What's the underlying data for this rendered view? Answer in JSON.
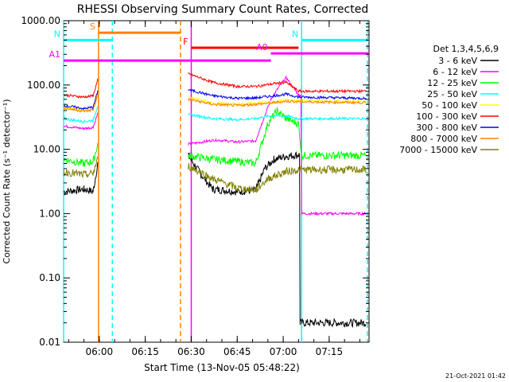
{
  "chart_data": {
    "type": "line",
    "title": "RHESSI Observing Summary Count Rates, Corrected",
    "xlabel": "Start Time (13-Nov-05 05:48:22)",
    "ylabel": "Corrected Count Rate (s⁻¹ detector⁻¹)",
    "yscale": "log",
    "ylim": [
      0.01,
      1000
    ],
    "xlim": [
      "05:48:22",
      "07:28:00"
    ],
    "y_ticks": [
      "0.01",
      "0.10",
      "1.00",
      "10.00",
      "100.00",
      "1000.00"
    ],
    "x_ticks": [
      "06:00",
      "06:15",
      "06:30",
      "06:45",
      "07:00",
      "07:15"
    ],
    "legend_title": "Det 1,3,4,5,6,9",
    "legend_position": "right",
    "series": [
      {
        "name": "3 - 6 keV",
        "color": "#000000",
        "points": [
          [
            "05:48:22",
            2.2
          ],
          [
            "05:55:00",
            2.4
          ],
          [
            "05:58:00",
            2.2
          ],
          [
            "05:59:30",
            6
          ],
          [
            "06:00:00",
            null
          ],
          [
            "06:29:00",
            8
          ],
          [
            "06:33:00",
            4.2
          ],
          [
            "06:37:00",
            2.4
          ],
          [
            "06:45:00",
            2.2
          ],
          [
            "06:51:00",
            2.3
          ],
          [
            "06:54:00",
            5
          ],
          [
            "06:57:00",
            7
          ],
          [
            "07:01:00",
            7.8
          ],
          [
            "07:05:00",
            8.2
          ],
          [
            "07:05:30",
            0.02
          ],
          [
            "07:27:00",
            0.02
          ]
        ]
      },
      {
        "name": "6 - 12 keV",
        "color": "#ff00ff",
        "points": [
          [
            "05:48:22",
            23
          ],
          [
            "05:55:00",
            21
          ],
          [
            "05:58:00",
            22
          ],
          [
            "05:59:30",
            36
          ],
          [
            "06:00:00",
            null
          ],
          [
            "06:29:00",
            12
          ],
          [
            "06:38:00",
            14
          ],
          [
            "06:45:00",
            13
          ],
          [
            "06:51:00",
            13.5
          ],
          [
            "06:53:00",
            25
          ],
          [
            "06:56:00",
            60
          ],
          [
            "06:59:00",
            100
          ],
          [
            "07:01:00",
            130
          ],
          [
            "07:05:00",
            70
          ],
          [
            "07:06:00",
            1.0
          ],
          [
            "07:27:00",
            1.0
          ]
        ]
      },
      {
        "name": "12 - 25 keV",
        "color": "#00ff00",
        "points": [
          [
            "05:48:22",
            7
          ],
          [
            "05:55:00",
            6
          ],
          [
            "05:58:00",
            6.5
          ],
          [
            "05:59:30",
            12
          ],
          [
            "06:00:00",
            null
          ],
          [
            "06:29:00",
            8
          ],
          [
            "06:37:00",
            7
          ],
          [
            "06:45:00",
            6.5
          ],
          [
            "06:51:00",
            6
          ],
          [
            "06:55:00",
            25
          ],
          [
            "06:58:00",
            40
          ],
          [
            "07:01:00",
            30
          ],
          [
            "07:05:00",
            25
          ],
          [
            "07:06:00",
            8
          ],
          [
            "07:27:00",
            8
          ]
        ]
      },
      {
        "name": "25 - 50 keV",
        "color": "#00ffff",
        "points": [
          [
            "05:48:22",
            30
          ],
          [
            "05:55:00",
            27
          ],
          [
            "05:58:00",
            28
          ],
          [
            "05:59:30",
            48
          ],
          [
            "06:00:00",
            null
          ],
          [
            "06:29:00",
            35
          ],
          [
            "06:37:00",
            30
          ],
          [
            "06:45:00",
            29
          ],
          [
            "06:51:00",
            30
          ],
          [
            "06:55:00",
            33
          ],
          [
            "07:01:00",
            33
          ],
          [
            "07:05:00",
            30
          ],
          [
            "07:27:00",
            30
          ]
        ]
      },
      {
        "name": "50 - 100 keV",
        "color": "#ffff00",
        "points": [
          [
            "05:48:22",
            45
          ],
          [
            "05:55:00",
            40
          ],
          [
            "05:58:00",
            42
          ],
          [
            "05:59:30",
            72
          ],
          [
            "06:00:00",
            null
          ],
          [
            "06:29:00",
            65
          ],
          [
            "06:37:00",
            52
          ],
          [
            "06:45:00",
            50
          ],
          [
            "06:51:00",
            52
          ],
          [
            "06:57:00",
            55
          ],
          [
            "07:01:00",
            58
          ],
          [
            "07:05:00",
            58
          ],
          [
            "07:27:00",
            55
          ]
        ]
      },
      {
        "name": "100 - 300 keV",
        "color": "#ff0000",
        "points": [
          [
            "05:48:22",
            70
          ],
          [
            "05:55:00",
            65
          ],
          [
            "05:58:00",
            68
          ],
          [
            "05:59:30",
            120
          ],
          [
            "06:00:00",
            null
          ],
          [
            "06:29:00",
            150
          ],
          [
            "06:37:00",
            110
          ],
          [
            "06:45:00",
            95
          ],
          [
            "06:51:00",
            95
          ],
          [
            "06:57:00",
            105
          ],
          [
            "07:01:00",
            110
          ],
          [
            "07:05:00",
            80
          ],
          [
            "07:27:00",
            80
          ]
        ]
      },
      {
        "name": "300 - 800 keV",
        "color": "#0000ff",
        "points": [
          [
            "05:48:22",
            48
          ],
          [
            "05:55:00",
            43
          ],
          [
            "05:58:00",
            45
          ],
          [
            "05:59:30",
            80
          ],
          [
            "06:00:00",
            null
          ],
          [
            "06:29:00",
            85
          ],
          [
            "06:37:00",
            68
          ],
          [
            "06:45:00",
            62
          ],
          [
            "06:51:00",
            63
          ],
          [
            "06:57:00",
            68
          ],
          [
            "07:01:00",
            72
          ],
          [
            "07:05:00",
            65
          ],
          [
            "07:27:00",
            62
          ]
        ]
      },
      {
        "name": "800 - 7000 keV",
        "color": "#ff8000",
        "points": [
          [
            "05:48:22",
            44
          ],
          [
            "05:55:00",
            39
          ],
          [
            "05:58:00",
            41
          ],
          [
            "05:59:30",
            70
          ],
          [
            "06:00:00",
            null
          ],
          [
            "06:29:00",
            60
          ],
          [
            "06:37:00",
            50
          ],
          [
            "06:45:00",
            48
          ],
          [
            "06:51:00",
            50
          ],
          [
            "06:57:00",
            53
          ],
          [
            "07:01:00",
            56
          ],
          [
            "07:05:00",
            55
          ],
          [
            "07:27:00",
            53
          ]
        ]
      },
      {
        "name": "7000 - 15000 keV",
        "color": "#808000",
        "points": [
          [
            "05:48:22",
            4.5
          ],
          [
            "05:55:00",
            4.0
          ],
          [
            "05:58:00",
            4.2
          ],
          [
            "05:59:30",
            7
          ],
          [
            "06:00:00",
            null
          ],
          [
            "06:29:00",
            5.5
          ],
          [
            "06:37:00",
            3.5
          ],
          [
            "06:45:00",
            2.5
          ],
          [
            "06:51:00",
            2.3
          ],
          [
            "06:55:00",
            3.5
          ],
          [
            "07:01:00",
            4.5
          ],
          [
            "07:05:00",
            4.8
          ],
          [
            "07:27:00",
            4.8
          ]
        ]
      }
    ],
    "flag_bars": [
      {
        "label": "S",
        "color": "#ff8000",
        "start": "05:59:45",
        "end": "06:26:30",
        "y": 650
      },
      {
        "label": "N",
        "color": "#00ffff",
        "start": "05:48:22",
        "end": "06:04:15",
        "y": 500
      },
      {
        "label": "N",
        "color": "#00ffff",
        "start": "07:06:00",
        "end": "07:28:00",
        "y": 500
      },
      {
        "label": "F",
        "color": "#ff0000",
        "start": "06:30:00",
        "end": "07:05:00",
        "y": 380
      },
      {
        "label": "A0",
        "color": "#ff00ff",
        "start": "06:56:00",
        "end": "07:28:00",
        "y": 310
      },
      {
        "label": "A1",
        "color": "#ff00ff",
        "start": "05:48:22",
        "end": "06:56:00",
        "y": 240
      }
    ],
    "vertical_markers": [
      {
        "time": "05:48:22",
        "color": "#00ffff",
        "style": "solid"
      },
      {
        "time": "05:59:45",
        "color": "#ff8000",
        "style": "solid"
      },
      {
        "time": "06:04:15",
        "color": "#00ffff",
        "style": "dashed"
      },
      {
        "time": "06:26:30",
        "color": "#ff8000",
        "style": "dashed"
      },
      {
        "time": "06:30:00",
        "color": "#ff00ff",
        "style": "solid"
      },
      {
        "time": "07:06:00",
        "color": "#00ffff",
        "style": "solid"
      },
      {
        "time": "07:27:30",
        "color": "#00ffff",
        "style": "dashed"
      }
    ],
    "footer_date": "21-Oct-2021 01:42"
  }
}
